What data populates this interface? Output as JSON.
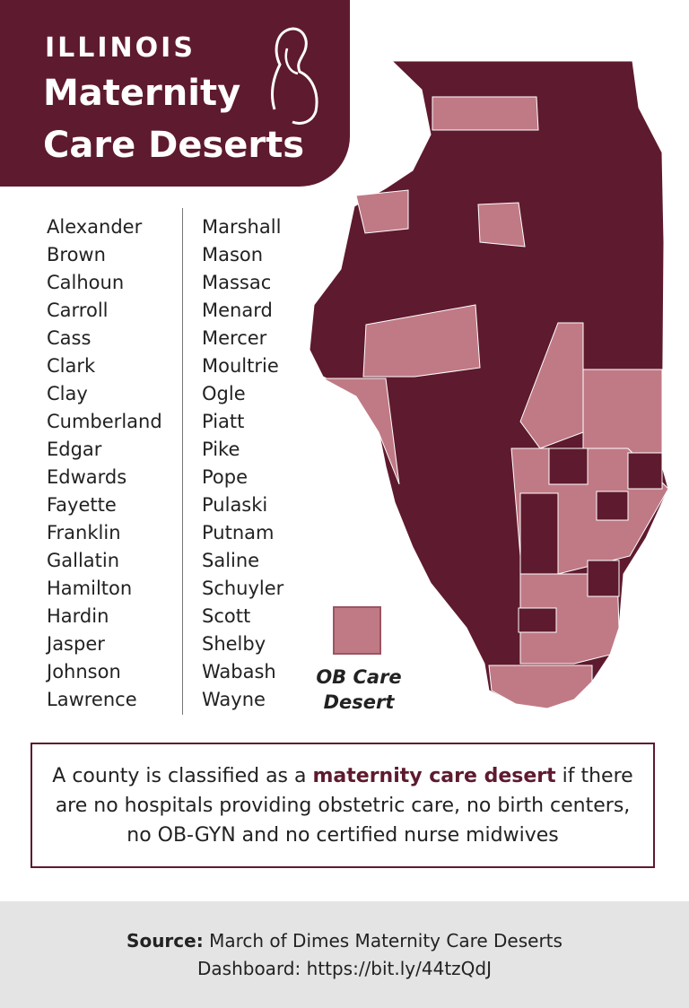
{
  "header": {
    "state": "ILLINOIS",
    "title_line1": "Maternity",
    "title_line2": "Care Deserts"
  },
  "counties": {
    "column1": [
      "Alexander",
      "Brown",
      "Calhoun",
      "Carroll",
      "Cass",
      "Clark",
      "Clay",
      "Cumberland",
      "Edgar",
      "Edwards",
      "Fayette",
      "Franklin",
      "Gallatin",
      "Hamilton",
      "Hardin",
      "Jasper",
      "Johnson",
      "Lawrence"
    ],
    "column2": [
      "Marshall",
      "Mason",
      "Massac",
      "Menard",
      "Mercer",
      "Moultrie",
      "Ogle",
      "Piatt",
      "Pike",
      "Pope",
      "Pulaski",
      "Putnam",
      "Saline",
      "Schuyler",
      "Scott",
      "Shelby",
      "Wabash",
      "Wayne"
    ]
  },
  "legend": {
    "label_line1": "OB Care",
    "label_line2": "Desert"
  },
  "definition": {
    "before": "A county is classified as a",
    "highlight": "maternity care desert",
    "after": "if there are no hospitals providing obstetric care, no birth centers, no OB-GYN and no certified nurse midwives"
  },
  "source": {
    "label": "Source:",
    "text": "March of Dimes Maternity Care Deserts Dashboard: https://bit.ly/44tzQdJ"
  }
}
